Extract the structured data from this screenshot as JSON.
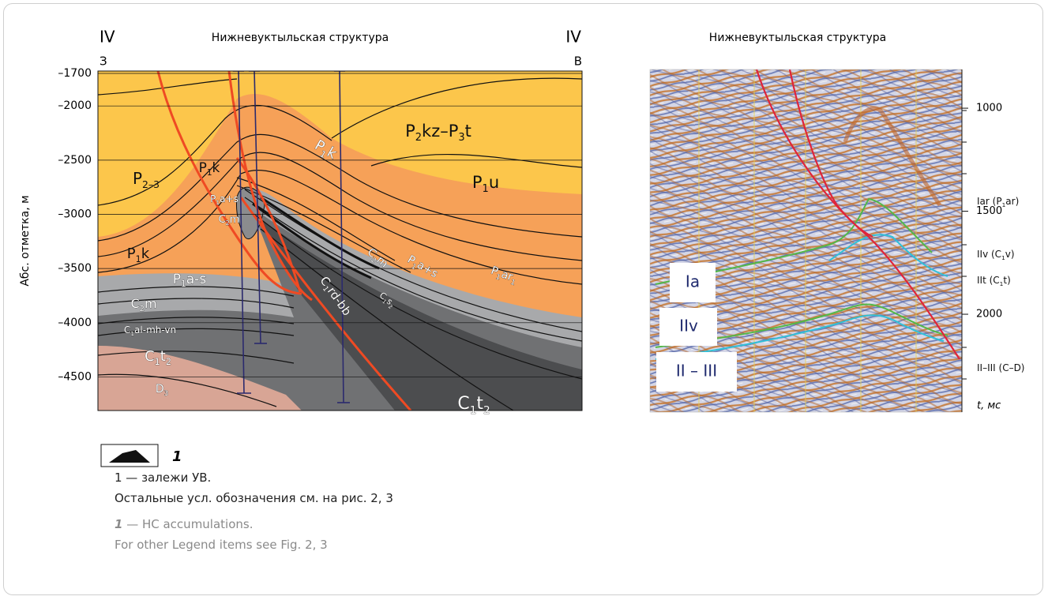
{
  "left": {
    "roman_left": "IV",
    "roman_right": "IV",
    "side_left": "З",
    "side_right": "В",
    "title": "Нижневуктыльская структура",
    "y_label": "Абс. отметка, м",
    "ylim": [
      -1700,
      -4850
    ],
    "yticks": [
      {
        "value": -1700,
        "label": "–1700"
      },
      {
        "value": -2000,
        "label": "–2000"
      },
      {
        "value": -2500,
        "label": "–2500"
      },
      {
        "value": -3000,
        "label": "–3000"
      },
      {
        "value": -3500,
        "label": "–3500"
      },
      {
        "value": -4000,
        "label": "–4000"
      },
      {
        "value": -4500,
        "label": "–4500"
      }
    ],
    "formations": [
      {
        "parts": [
          "P",
          "2",
          "kz–P",
          "3",
          "t"
        ]
      },
      {
        "parts": [
          "P",
          "2–3"
        ]
      },
      {
        "parts": [
          "P",
          "1",
          "k"
        ]
      },
      {
        "parts": [
          "P",
          "1",
          "a+s"
        ]
      },
      {
        "parts": [
          "C",
          "2",
          "m"
        ]
      },
      {
        "parts": [
          "P",
          "1",
          "k"
        ]
      },
      {
        "parts": [
          "P",
          "1",
          "u"
        ]
      },
      {
        "parts": [
          "P",
          "1",
          "k"
        ]
      },
      {
        "parts": [
          "P",
          "1",
          "a-s"
        ]
      },
      {
        "parts": [
          "C",
          "2",
          "m"
        ]
      },
      {
        "parts": [
          "C",
          "1",
          "al-mh-vn"
        ]
      },
      {
        "parts": [
          "C",
          "1",
          "t",
          "2"
        ]
      },
      {
        "parts": [
          "D",
          "3"
        ]
      },
      {
        "parts": [
          "C",
          "1",
          "rd-bb"
        ]
      },
      {
        "parts": [
          "C",
          "2",
          "m"
        ]
      },
      {
        "parts": [
          "C",
          "1",
          "s",
          "2"
        ]
      },
      {
        "parts": [
          "P",
          "1",
          "a+s"
        ]
      },
      {
        "parts": [
          "P",
          "1",
          "ar",
          "1"
        ]
      },
      {
        "parts": [
          "C",
          "1",
          "t",
          "2"
        ]
      }
    ]
  },
  "right": {
    "title": "Нижневуктыльская структура",
    "ylim": [
      812,
      2475
    ],
    "yticks": [
      1000,
      1500,
      2000
    ],
    "horizons": [
      {
        "parts": [
          "Iar (P",
          "1",
          "ar)"
        ]
      },
      {
        "parts": [
          "IIv (C",
          "1",
          "v)"
        ]
      },
      {
        "parts": [
          "IIt (C",
          "1",
          "t)"
        ]
      },
      {
        "parts": [
          "II–III (C–D)"
        ]
      }
    ],
    "axis_unit": "t, мс",
    "boxes": [
      "Ia",
      "IIv",
      "II – III"
    ]
  },
  "legend": {
    "number": "1",
    "ru_item": "1 — залежи УВ.",
    "ru_note": "Остальные усл. обозначения см. на рис. 2, 3",
    "en_number": "1",
    "en_item": " — HC accumulations.",
    "en_note": "For other Legend items see Fig. 2, 3"
  }
}
